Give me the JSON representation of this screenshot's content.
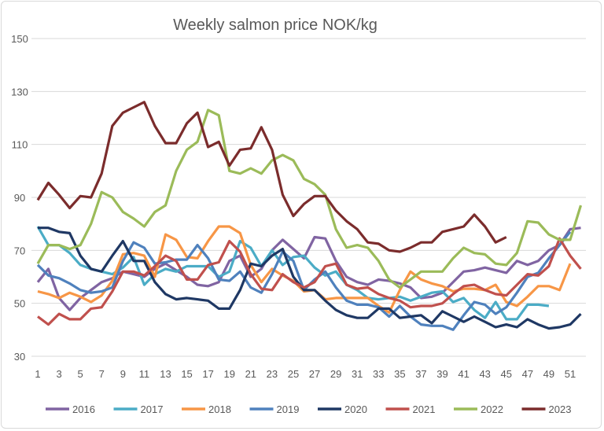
{
  "chart_data": {
    "type": "line",
    "title": "Weekly salmon price NOK/kg",
    "xlabel": "",
    "ylabel": "",
    "ylim": [
      30,
      150
    ],
    "yticks": [
      30,
      50,
      70,
      90,
      110,
      130,
      150
    ],
    "xticks": [
      1,
      3,
      5,
      7,
      9,
      11,
      13,
      15,
      17,
      19,
      21,
      23,
      25,
      27,
      29,
      31,
      33,
      35,
      37,
      39,
      41,
      43,
      45,
      47,
      49,
      51
    ],
    "grid": "horizontal",
    "legend": "bottom",
    "series": [
      {
        "name": "2016",
        "color": "#8064a2",
        "values": [
          58,
          63,
          52,
          47.5,
          52,
          55,
          58,
          59.5,
          62,
          61,
          60,
          63,
          65,
          62.5,
          60,
          57,
          56.5,
          58,
          66,
          68,
          60,
          63,
          70,
          74,
          70.5,
          67,
          75,
          74.5,
          66,
          60,
          58,
          57,
          59,
          58.5,
          57.5,
          56,
          52,
          52.5,
          54,
          58,
          62,
          62.5,
          63.5,
          62.5,
          61.5,
          66,
          64.5,
          66,
          70,
          72,
          78,
          78.5
        ]
      },
      {
        "name": "2017",
        "color": "#4bacc6",
        "values": [
          79,
          72,
          72,
          69,
          64.5,
          63,
          62,
          61,
          63.5,
          67.5,
          57,
          61,
          63,
          62,
          64,
          64,
          64,
          60,
          62,
          73.5,
          71,
          64,
          70,
          64.5,
          67.5,
          68,
          63.5,
          60.5,
          62,
          57,
          55,
          52,
          51.5,
          52,
          52.5,
          51,
          52.5,
          54,
          54.5,
          50.5,
          52,
          47.5,
          44.5,
          50.5,
          44,
          44,
          49.5,
          49.5,
          49
        ]
      },
      {
        "name": "2018",
        "color": "#f79646",
        "values": [
          54.5,
          53.5,
          52,
          54,
          52.5,
          50.5,
          53,
          58.5,
          68.5,
          69,
          68,
          60,
          76,
          74,
          67.5,
          67,
          73.5,
          79,
          79,
          76.5,
          64.5,
          58,
          63,
          60.5,
          58.5,
          54.5,
          55,
          51.5,
          52,
          52,
          52,
          52,
          49,
          46.5,
          55,
          62,
          59,
          57.5,
          56.5,
          54.5,
          55.5,
          55.5,
          55,
          57,
          50.5,
          49,
          52.5,
          56.5,
          56.5,
          55,
          65
        ]
      },
      {
        "name": "2019",
        "color": "#4f81bd",
        "values": [
          64.5,
          60.5,
          59.5,
          57.5,
          55,
          54,
          54.5,
          56,
          66,
          73,
          71,
          65,
          65.5,
          66.5,
          66.5,
          72,
          67,
          59,
          58.5,
          62,
          56,
          54,
          61,
          69.5,
          66,
          55,
          59,
          62,
          56,
          51,
          49.5,
          49.5,
          48.5,
          45,
          49,
          45,
          42,
          41.5,
          41.5,
          40,
          45.5,
          50.5,
          49.5,
          46,
          48.5,
          54,
          60,
          61.5,
          67,
          72,
          77
        ]
      },
      {
        "name": "2020",
        "color": "#1f3864",
        "values": [
          78.5,
          78.5,
          77,
          76.5,
          68,
          63,
          62,
          68,
          73.5,
          66,
          66,
          58,
          53.5,
          51.5,
          52,
          51.5,
          51,
          48,
          48,
          55,
          65,
          64,
          68,
          70.5,
          60,
          55,
          55,
          51,
          47.5,
          45.5,
          44.5,
          44.5,
          48,
          48,
          44.5,
          45,
          45.5,
          42.5,
          47,
          45,
          43,
          45,
          43,
          41,
          42,
          41,
          44,
          42,
          40.5,
          41,
          42,
          46
        ]
      },
      {
        "name": "2021",
        "color": "#c0504d",
        "values": [
          45,
          42,
          46,
          44,
          44,
          48,
          48.5,
          54.5,
          62,
          62,
          60.5,
          64,
          68,
          66,
          59,
          59,
          64.5,
          65.5,
          73.5,
          69.5,
          61,
          55.5,
          55,
          61,
          58,
          56,
          58,
          64,
          65,
          57,
          55.5,
          56,
          53.5,
          52,
          51,
          48.5,
          49,
          49,
          50,
          53.5,
          56.5,
          57,
          55,
          53.5,
          53,
          57,
          61,
          60.5,
          64,
          74.5,
          68,
          63
        ]
      },
      {
        "name": "2022",
        "color": "#9bbb59",
        "values": [
          65,
          72,
          72,
          70.5,
          72,
          80,
          92,
          90,
          84.5,
          82,
          79,
          84.5,
          87,
          100,
          108,
          111,
          123,
          121,
          100,
          99,
          101,
          99,
          104,
          106,
          104,
          97,
          95,
          91,
          78,
          71,
          72,
          71,
          66,
          59,
          56,
          59,
          62,
          62,
          62,
          67,
          71,
          69,
          68.5,
          65,
          64.5,
          69,
          81,
          80.5,
          76,
          74,
          74,
          87
        ]
      },
      {
        "name": "2023",
        "color": "#7b2c2c",
        "values": [
          89,
          95.5,
          91,
          86,
          90.5,
          90,
          99,
          117,
          122,
          124,
          126,
          117,
          110.5,
          110.5,
          118,
          122,
          109,
          111,
          102,
          108,
          108.5,
          116.5,
          108,
          91,
          83,
          87.5,
          90.5,
          90.5,
          85,
          81,
          78,
          73,
          72.5,
          70,
          69.5,
          71,
          73,
          73,
          77,
          78,
          79,
          83.5,
          79,
          73,
          75
        ]
      }
    ]
  }
}
